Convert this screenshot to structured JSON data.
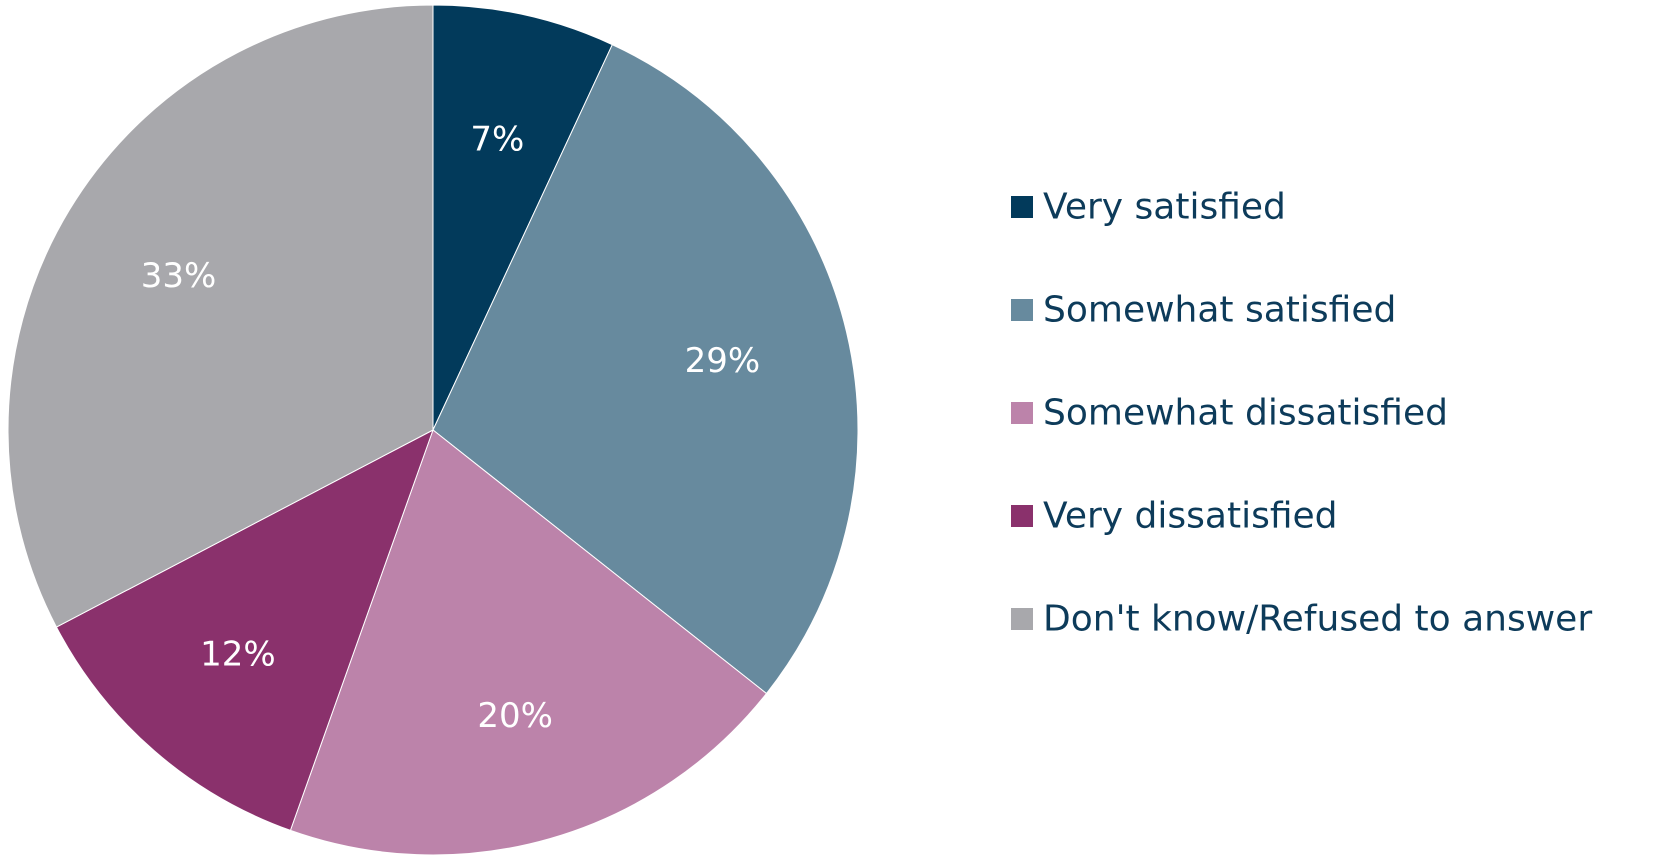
{
  "chart_data": {
    "type": "pie",
    "start_angle": "12 o'clock",
    "direction": "clockwise",
    "slices": [
      {
        "label": "Very satisfied",
        "value": 7,
        "display": "7%",
        "color": "#023a5b"
      },
      {
        "label": "Somewhat satisfied",
        "value": 29,
        "display": "29%",
        "color": "#678a9e"
      },
      {
        "label": "Somewhat dissatisfied",
        "value": 20,
        "display": "20%",
        "color": "#bc83aa"
      },
      {
        "label": "Very dissatisfied",
        "value": 12,
        "display": "12%",
        "color": "#8a316c"
      },
      {
        "label": "Don't know/Refused to answer",
        "value": 33,
        "display": "33%",
        "color": "#a8a8ac"
      }
    ],
    "legend_position": "right"
  }
}
